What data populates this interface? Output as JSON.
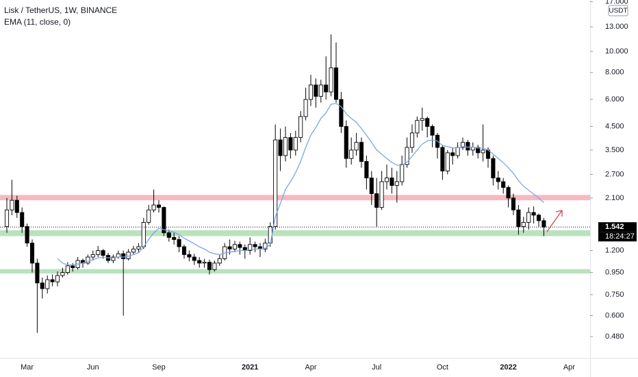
{
  "chart_data": {
    "type": "candlestick",
    "title": "Lisk / TetherUS, 1W, BINANCE",
    "indicator": "EMA (11, close, 0)",
    "currency": "USDT",
    "countdown": "18:24:27",
    "log_scale": true,
    "up_color": "#ffffff",
    "down_color": "#000000",
    "ylim": [
      0.383,
      17.3
    ],
    "yticks": [
      {
        "value": 0.48,
        "label": "0.480"
      },
      {
        "value": 0.6,
        "label": "0.600"
      },
      {
        "value": 0.75,
        "label": "0.750"
      },
      {
        "value": 0.95,
        "label": "0.950"
      },
      {
        "value": 1.2,
        "label": "1.200"
      },
      {
        "value": 2.1,
        "label": "2.100"
      },
      {
        "value": 2.7,
        "label": "2.700"
      },
      {
        "value": 3.5,
        "label": "3.500"
      },
      {
        "value": 4.5,
        "label": "4.500"
      },
      {
        "value": 6,
        "label": "6.000"
      },
      {
        "value": 8,
        "label": "8.000"
      },
      {
        "value": 10,
        "label": "10.000"
      },
      {
        "value": 13,
        "label": "13.000"
      },
      {
        "value": 17,
        "label": "17.000"
      }
    ],
    "categories": [
      null,
      null,
      null,
      null,
      "Mar",
      null,
      null,
      null,
      null,
      null,
      null,
      null,
      null,
      null,
      null,
      null,
      null,
      "Jun",
      null,
      null,
      null,
      null,
      null,
      null,
      null,
      null,
      null,
      null,
      null,
      null,
      "Sep",
      null,
      null,
      null,
      null,
      null,
      null,
      null,
      null,
      null,
      null,
      null,
      null,
      null,
      null,
      null,
      null,
      null,
      "2021",
      null,
      null,
      null,
      null,
      null,
      null,
      null,
      null,
      null,
      null,
      null,
      "Apr",
      null,
      null,
      null,
      null,
      null,
      null,
      null,
      null,
      null,
      null,
      null,
      null,
      "Jul",
      null,
      null,
      null,
      null,
      null,
      null,
      null,
      null,
      null,
      null,
      null,
      null,
      "Oct",
      null,
      null,
      null,
      null,
      null,
      null,
      null,
      null,
      null,
      null,
      null,
      null,
      "2022",
      null,
      null,
      null,
      null,
      null,
      null,
      null,
      null,
      null,
      null,
      null,
      "Apr",
      null,
      null,
      null,
      null
    ],
    "open": [
      1.55,
      1.85,
      2.05,
      1.8,
      1.55,
      1.3,
      1.05,
      0.85,
      0.8,
      0.88,
      0.86,
      0.92,
      0.95,
      1.02,
      1.0,
      1.08,
      1.05,
      1.12,
      1.15,
      1.2,
      1.14,
      1.08,
      1.12,
      1.16,
      1.1,
      1.18,
      1.22,
      1.25,
      1.62,
      1.85,
      1.95,
      1.9,
      1.45,
      1.38,
      1.35,
      1.25,
      1.15,
      1.12,
      1.08,
      1.05,
      1.06,
      0.98,
      1.05,
      1.1,
      1.25,
      1.22,
      1.28,
      1.24,
      1.2,
      1.28,
      1.25,
      1.22,
      1.3,
      1.55,
      3.9,
      3.3,
      4.0,
      3.5,
      4.0,
      5.0,
      6.0,
      7.0,
      6.2,
      7.0,
      6.5,
      8.4,
      6.0,
      4.5,
      3.2,
      3.5,
      3.8,
      3.1,
      2.6,
      2.2,
      1.9,
      2.5,
      2.6,
      2.4,
      2.5,
      3.0,
      3.6,
      4.2,
      4.8,
      4.9,
      4.5,
      4.1,
      3.6,
      2.8,
      3.4,
      3.3,
      3.6,
      3.8,
      3.5,
      3.6,
      3.4,
      3.5,
      3.2,
      2.6,
      2.5,
      2.35,
      2.1,
      1.85,
      1.55,
      1.62,
      1.8,
      1.75,
      1.65,
      null,
      null,
      null,
      null,
      null,
      null,
      null,
      null,
      null
    ],
    "high": [
      2.1,
      2.55,
      2.15,
      1.9,
      1.6,
      1.35,
      1.1,
      0.9,
      0.92,
      0.93,
      0.96,
      1.0,
      1.06,
      1.05,
      1.12,
      1.1,
      1.15,
      1.2,
      1.26,
      1.22,
      1.17,
      1.15,
      1.2,
      1.2,
      1.22,
      1.26,
      1.3,
      1.7,
      1.95,
      2.3,
      2.05,
      1.92,
      1.5,
      1.45,
      1.4,
      1.28,
      1.2,
      1.16,
      1.12,
      1.1,
      1.09,
      1.08,
      1.15,
      1.3,
      1.35,
      1.33,
      1.32,
      1.28,
      1.38,
      1.32,
      1.3,
      1.36,
      1.62,
      4.6,
      4.4,
      4.5,
      4.2,
      4.3,
      5.3,
      6.8,
      7.8,
      7.5,
      7.4,
      9.5,
      12.0,
      11.0,
      6.5,
      4.8,
      4.0,
      4.2,
      4.0,
      3.3,
      2.8,
      2.6,
      2.8,
      3.0,
      2.9,
      2.8,
      3.3,
      4.0,
      4.6,
      5.0,
      5.5,
      5.0,
      4.6,
      4.2,
      3.7,
      3.5,
      3.6,
      3.8,
      4.0,
      3.9,
      3.8,
      3.7,
      4.6,
      3.6,
      3.3,
      2.8,
      2.6,
      2.4,
      2.2,
      1.95,
      1.72,
      1.9,
      1.92,
      1.78,
      1.7,
      null,
      null,
      null,
      null,
      null,
      null,
      null,
      null,
      null
    ],
    "low": [
      1.45,
      1.75,
      1.7,
      1.45,
      1.25,
      0.95,
      0.5,
      0.72,
      0.76,
      0.82,
      0.82,
      0.9,
      0.93,
      0.96,
      0.98,
      1.0,
      1.03,
      1.08,
      1.12,
      1.1,
      1.05,
      1.05,
      1.1,
      0.6,
      1.08,
      1.15,
      1.18,
      1.22,
      1.58,
      1.8,
      1.8,
      1.4,
      1.32,
      1.28,
      1.18,
      1.1,
      1.07,
      1.03,
      1.0,
      1.0,
      0.93,
      0.96,
      1.02,
      1.08,
      1.15,
      1.18,
      1.15,
      1.1,
      1.15,
      1.18,
      1.12,
      1.18,
      1.25,
      1.5,
      2.8,
      3.1,
      3.2,
      3.3,
      3.8,
      4.8,
      5.6,
      5.5,
      5.8,
      6.0,
      6.2,
      5.8,
      4.2,
      2.9,
      3.0,
      3.3,
      2.9,
      2.3,
      1.95,
      1.55,
      1.85,
      2.3,
      2.2,
      2.0,
      2.4,
      2.9,
      3.4,
      4.0,
      4.3,
      4.0,
      3.6,
      3.2,
      2.55,
      2.7,
      3.0,
      3.2,
      3.5,
      3.3,
      3.3,
      3.2,
      3.1,
      2.9,
      2.4,
      2.3,
      2.2,
      1.9,
      1.75,
      1.42,
      1.45,
      1.5,
      1.6,
      1.55,
      1.4,
      null,
      null,
      null,
      null,
      null,
      null,
      null,
      null,
      null
    ],
    "close": [
      1.85,
      2.05,
      1.8,
      1.55,
      1.3,
      1.05,
      0.85,
      0.8,
      0.88,
      0.86,
      0.92,
      0.95,
      1.02,
      1.0,
      1.08,
      1.05,
      1.12,
      1.15,
      1.2,
      1.14,
      1.08,
      1.12,
      1.16,
      1.1,
      1.18,
      1.22,
      1.25,
      1.62,
      1.85,
      1.95,
      1.9,
      1.45,
      1.38,
      1.35,
      1.25,
      1.15,
      1.12,
      1.08,
      1.05,
      1.06,
      0.98,
      1.05,
      1.1,
      1.25,
      1.22,
      1.28,
      1.24,
      1.2,
      1.28,
      1.25,
      1.22,
      1.3,
      1.55,
      3.9,
      3.3,
      4.0,
      3.5,
      4.0,
      5.0,
      6.0,
      7.0,
      6.2,
      7.0,
      6.5,
      8.4,
      6.0,
      4.5,
      3.2,
      3.5,
      3.8,
      3.1,
      2.6,
      2.2,
      1.9,
      2.5,
      2.6,
      2.4,
      2.5,
      3.0,
      3.6,
      4.2,
      4.8,
      4.9,
      4.5,
      4.1,
      3.6,
      2.8,
      3.4,
      3.3,
      3.6,
      3.8,
      3.5,
      3.6,
      3.4,
      3.5,
      3.2,
      2.6,
      2.5,
      2.35,
      2.1,
      1.85,
      1.55,
      1.62,
      1.8,
      1.75,
      1.65,
      1.542,
      null,
      null,
      null,
      null,
      null,
      null,
      null,
      null,
      null
    ],
    "ema": {
      "color": "#7fa4e8",
      "values": [
        null,
        null,
        null,
        null,
        null,
        null,
        null,
        null,
        null,
        null,
        1.1,
        1.05,
        1.03,
        1.03,
        1.04,
        1.05,
        1.07,
        1.09,
        1.11,
        1.12,
        1.11,
        1.11,
        1.12,
        1.12,
        1.13,
        1.15,
        1.17,
        1.25,
        1.35,
        1.45,
        1.52,
        1.5,
        1.48,
        1.46,
        1.42,
        1.37,
        1.33,
        1.29,
        1.25,
        1.22,
        1.18,
        1.16,
        1.15,
        1.17,
        1.18,
        1.19,
        1.2,
        1.2,
        1.21,
        1.22,
        1.22,
        1.23,
        1.28,
        1.72,
        1.98,
        2.3,
        2.5,
        2.75,
        3.1,
        3.6,
        4.1,
        4.45,
        4.9,
        5.2,
        5.7,
        5.75,
        5.55,
        5.15,
        4.9,
        4.7,
        4.4,
        4.1,
        3.8,
        3.5,
        3.35,
        3.2,
        3.07,
        2.98,
        2.98,
        3.08,
        3.27,
        3.5,
        3.73,
        3.86,
        3.9,
        3.85,
        3.67,
        3.63,
        3.58,
        3.59,
        3.63,
        3.61,
        3.61,
        3.58,
        3.57,
        3.5,
        3.35,
        3.2,
        3.06,
        2.9,
        2.73,
        2.53,
        2.38,
        2.28,
        2.19,
        2.1,
        2.0,
        null,
        null,
        null,
        null,
        null,
        null,
        null,
        null,
        null
      ]
    },
    "zones": [
      {
        "low": 2.05,
        "high": 2.17,
        "color": "#f7b9c0"
      },
      {
        "low": 1.4,
        "high": 1.49,
        "color": "#b9e2bd"
      },
      {
        "low": 0.94,
        "high": 0.985,
        "color": "#b9e2bd"
      }
    ]
  }
}
